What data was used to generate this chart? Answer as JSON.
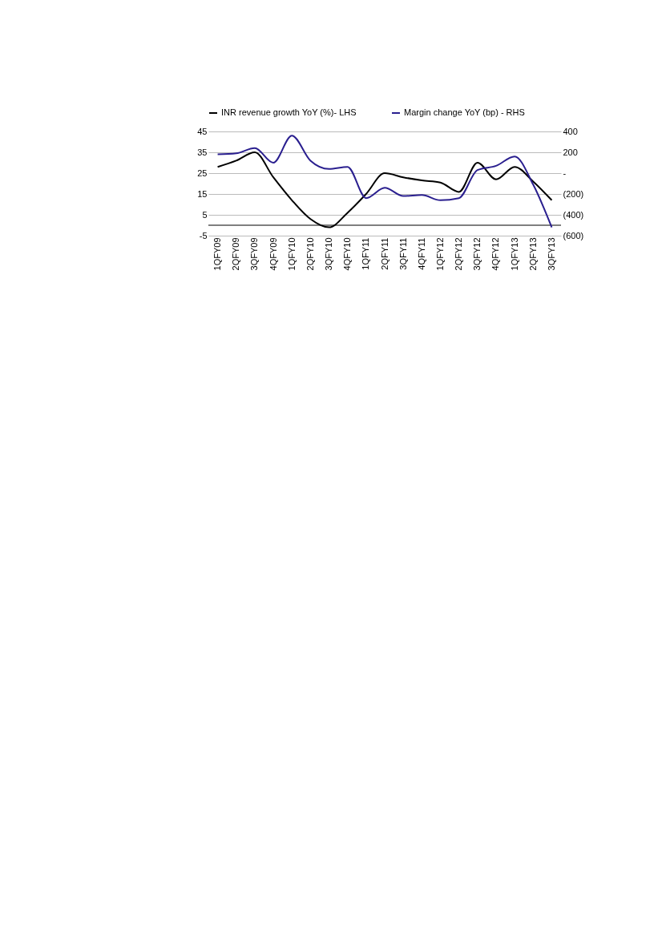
{
  "chart_data": {
    "type": "line",
    "categories": [
      "1QFY09",
      "2QFY09",
      "3QFY09",
      "4QFY09",
      "1QFY10",
      "2QFY10",
      "3QFY10",
      "4QFY10",
      "1QFY11",
      "2QFY11",
      "3QFY11",
      "4QFY11",
      "1QFY12",
      "2QFY12",
      "3QFY12",
      "4QFY12",
      "1QFY13",
      "2QFY13",
      "3QFY13"
    ],
    "series": [
      {
        "name": "INR revenue growth YoY (%)- LHS",
        "color": "#000000",
        "values": [
          28,
          31,
          35,
          23,
          12,
          3,
          -1,
          6,
          15,
          25,
          23,
          21.5,
          20.5,
          16,
          30,
          22,
          28,
          21,
          12
        ]
      },
      {
        "name": "Margin change YoY (bp) - RHS",
        "color": "#2a1f8f",
        "axis": "y2",
        "values": [
          180,
          190,
          240,
          100,
          360,
          120,
          40,
          60,
          -240,
          -140,
          -220,
          -210,
          -260,
          -240,
          30,
          70,
          160,
          -110,
          -520
        ]
      }
    ],
    "ylim": [
      -5,
      45
    ],
    "yticks": [
      -5,
      5,
      15,
      25,
      35,
      45
    ],
    "y2lim": [
      -600,
      400
    ],
    "y2ticks": [
      {
        "value": -600,
        "label": "(600)"
      },
      {
        "value": -400,
        "label": "(400)"
      },
      {
        "value": -200,
        "label": "(200)"
      },
      {
        "value": 0,
        "label": "-"
      },
      200,
      400
    ],
    "ref_lines": [
      {
        "axis": "y",
        "value": 0,
        "color": "#000000"
      }
    ],
    "grid": "y",
    "legend": "top",
    "marker": "none",
    "line_style": "solid"
  }
}
